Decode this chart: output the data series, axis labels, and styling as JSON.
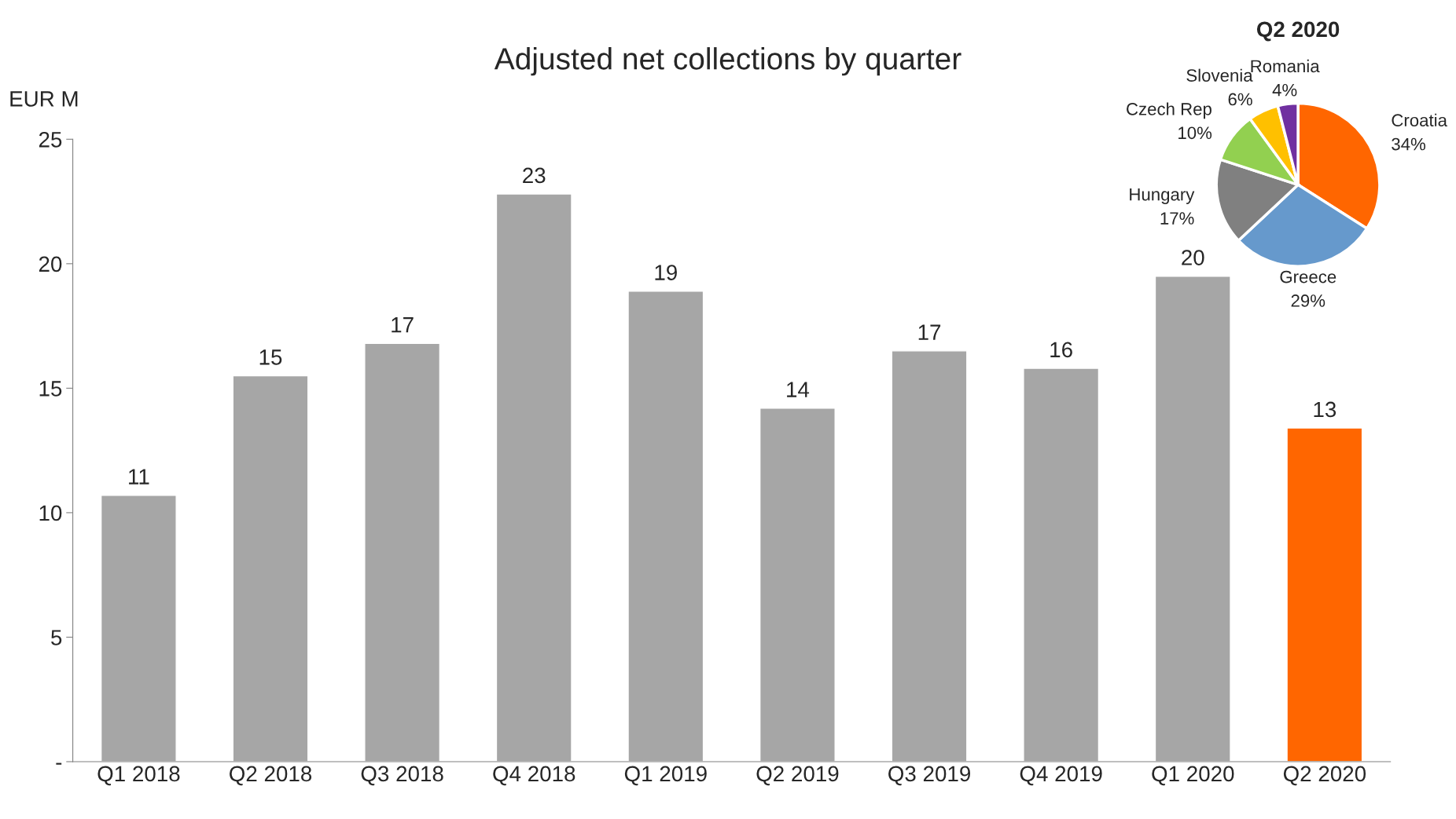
{
  "chart_data": [
    {
      "type": "bar",
      "title": "Adjusted net collections by quarter",
      "ylabel": "EUR M",
      "categories": [
        "Q1 2018",
        "Q2 2018",
        "Q3 2018",
        "Q4 2018",
        "Q1 2019",
        "Q2 2019",
        "Q3 2019",
        "Q4 2019",
        "Q1 2020",
        "Q2 2020"
      ],
      "values": [
        10.7,
        15.5,
        16.8,
        22.8,
        18.9,
        14.2,
        16.5,
        15.8,
        19.5,
        13.4
      ],
      "colors": [
        "#a6a6a6",
        "#a6a6a6",
        "#a6a6a6",
        "#a6a6a6",
        "#a6a6a6",
        "#a6a6a6",
        "#a6a6a6",
        "#a6a6a6",
        "#a6a6a6",
        "#ff6600"
      ],
      "value_labels": [
        "11",
        "15",
        "17",
        "23",
        "19",
        "14",
        "17",
        "16",
        "20",
        "13"
      ],
      "ylim": [
        0,
        25
      ],
      "yticks": [
        {
          "value": 0,
          "label": "-"
        },
        5,
        10,
        15,
        20,
        25
      ],
      "grid": false,
      "legend": false
    },
    {
      "type": "pie",
      "title": "Q2 2020",
      "categories": [
        "Croatia",
        "Greece",
        "Hungary",
        "Czech Rep",
        "Slovenia",
        "Romania"
      ],
      "values": [
        34,
        29,
        17,
        10,
        6,
        4
      ],
      "colors": [
        "#ff6600",
        "#6699cc",
        "#808080",
        "#92d050",
        "#ffc000",
        "#7030a0"
      ],
      "value_labels": [
        "34%",
        "29%",
        "17%",
        "10%",
        "6%",
        "4%"
      ]
    }
  ]
}
